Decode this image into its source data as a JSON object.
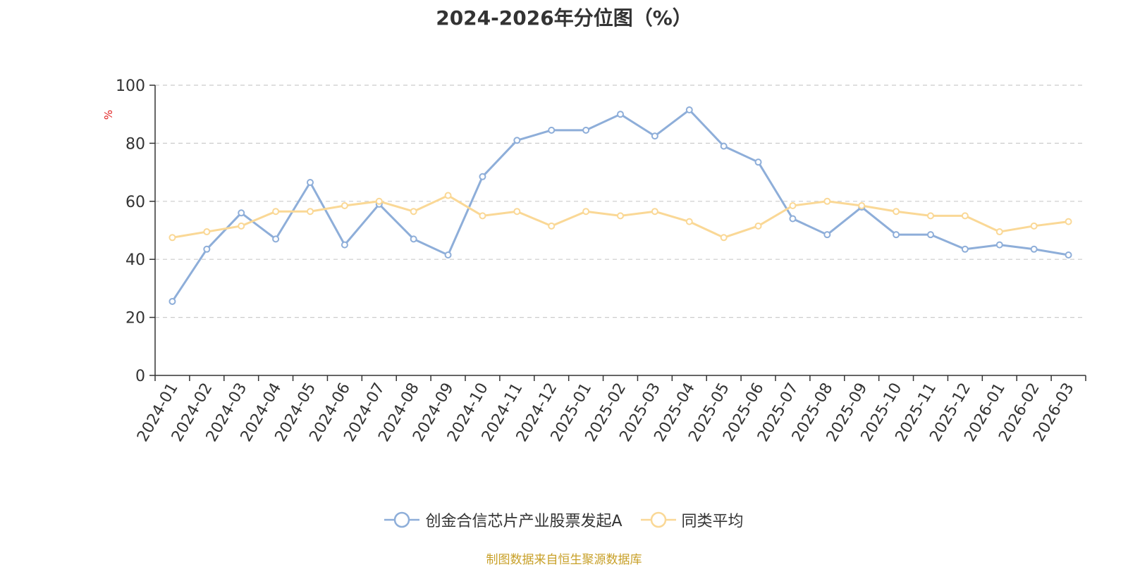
{
  "chart_data": {
    "type": "line",
    "title": "2024-2026年分位图（%）",
    "ylabel": "%",
    "xlabel": "",
    "ylim": [
      0,
      100
    ],
    "yticks": [
      0,
      20,
      40,
      60,
      80,
      100
    ],
    "grid": true,
    "legend_position": "bottom",
    "categories": [
      "2024-01",
      "2024-02",
      "2024-03",
      "2024-04",
      "2024-05",
      "2024-06",
      "2024-07",
      "2024-08",
      "2024-09",
      "2024-10",
      "2024-11",
      "2024-12",
      "2025-01",
      "2025-02",
      "2025-03",
      "2025-04",
      "2025-05",
      "2025-06",
      "2025-07",
      "2025-08",
      "2025-09",
      "2025-10",
      "2025-11",
      "2025-12",
      "2026-01",
      "2026-02",
      "2026-03"
    ],
    "series": [
      {
        "name": "创金合信芯片产业股票发起A",
        "color": "#8eaed9",
        "values": [
          25.5,
          43.5,
          56,
          47,
          66.5,
          45,
          59,
          47,
          41.5,
          68.5,
          81,
          84.5,
          84.5,
          90,
          82.5,
          91.5,
          79,
          73.5,
          54,
          48.5,
          58,
          48.5,
          48.5,
          43.5,
          45,
          43.5,
          41.5
        ]
      },
      {
        "name": "同类平均",
        "color": "#fad896",
        "values": [
          47.5,
          49.5,
          51.5,
          56.5,
          56.5,
          58.5,
          60,
          56.5,
          62,
          55,
          56.5,
          51.5,
          56.5,
          55,
          56.5,
          53,
          47.5,
          51.5,
          58.5,
          60,
          58.5,
          56.5,
          55,
          55,
          49.5,
          51.5,
          53
        ]
      }
    ]
  },
  "source_text": "制图数据来自恒生聚源数据库",
  "source_color": "#c8a028",
  "axis_color": "#333333",
  "ylabel_color": "#e02020",
  "grid_color": "#cccccc"
}
